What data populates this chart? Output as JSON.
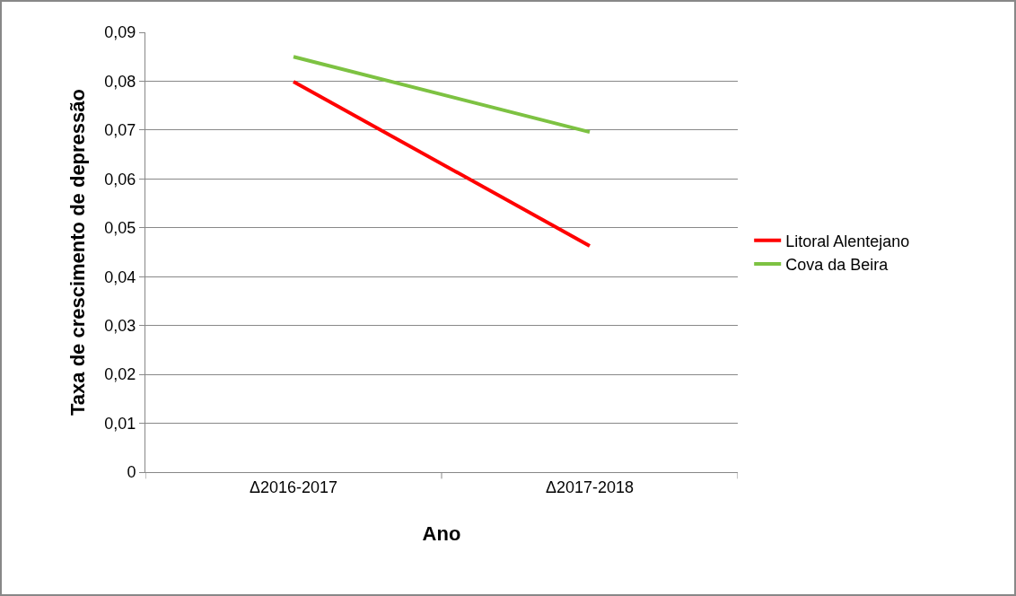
{
  "chart_data": {
    "type": "line",
    "xlabel": "Ano",
    "ylabel": "Taxa de crescimento de depressão",
    "categories": [
      "Δ2016-2017",
      "Δ2017-2018"
    ],
    "series": [
      {
        "name": "Litoral Alentejano",
        "color": "#ff0000",
        "values": [
          0.0799,
          0.0463
        ]
      },
      {
        "name": "Cova da Beira",
        "color": "#7dc242",
        "values": [
          0.085,
          0.0696
        ]
      }
    ],
    "ylim": [
      0,
      0.09
    ],
    "yticks": [
      0,
      {
        "value": 0.01,
        "label": "0,01"
      },
      {
        "value": 0.02,
        "label": "0,02"
      },
      {
        "value": 0.03,
        "label": "0,03"
      },
      {
        "value": 0.04,
        "label": "0,04"
      },
      {
        "value": 0.05,
        "label": "0,05"
      },
      {
        "value": 0.06,
        "label": "0,06"
      },
      {
        "value": 0.07,
        "label": "0,07"
      },
      {
        "value": 0.08,
        "label": "0,08"
      },
      {
        "value": 0.09,
        "label": "0,09"
      }
    ],
    "grid": "y",
    "legend": "right",
    "marker": "none",
    "line_style": "solid"
  }
}
